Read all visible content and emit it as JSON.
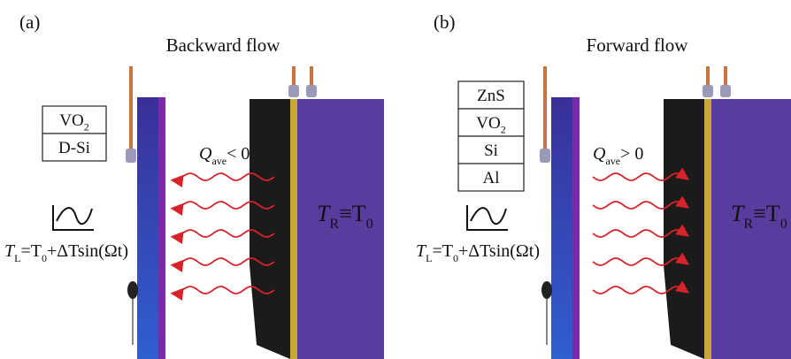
{
  "panels": [
    {
      "label": "(a)",
      "title": "Backward flow",
      "layers": [
        [
          {
            "base": "VO"
          },
          {
            "sub": "2"
          }
        ],
        [
          {
            "base": "D-Si"
          }
        ]
      ],
      "flux": [
        {
          "base": "Q"
        },
        {
          "sub": "ave"
        },
        {
          "base": "< 0"
        }
      ],
      "left_temperature": [
        {
          "base": "T"
        },
        {
          "sub": "L"
        },
        {
          "base": "=T"
        },
        {
          "sub": "0"
        },
        {
          "base": "+ΔTsin(Ωt)"
        }
      ],
      "right_temperature": [
        {
          "base": "T"
        },
        {
          "sub": "R"
        },
        {
          "base": "≡T"
        },
        {
          "sub": "0"
        }
      ]
    },
    {
      "label": "(b)",
      "title": "Forward flow",
      "layers": [
        [
          {
            "base": "ZnS"
          }
        ],
        [
          {
            "base": "VO"
          },
          {
            "sub": "2"
          }
        ],
        [
          {
            "base": "Si"
          }
        ],
        [
          {
            "base": "Al"
          }
        ]
      ],
      "flux": [
        {
          "base": "Q"
        },
        {
          "sub": "ave"
        },
        {
          "base": "> 0"
        }
      ],
      "left_temperature": [
        {
          "base": "T"
        },
        {
          "sub": "L"
        },
        {
          "base": "=T"
        },
        {
          "sub": "0"
        },
        {
          "base": "+ΔTsin(Ωt)"
        }
      ],
      "right_temperature": [
        {
          "base": "T"
        },
        {
          "sub": "R"
        },
        {
          "base": "≡T"
        },
        {
          "sub": "0"
        }
      ]
    }
  ]
}
